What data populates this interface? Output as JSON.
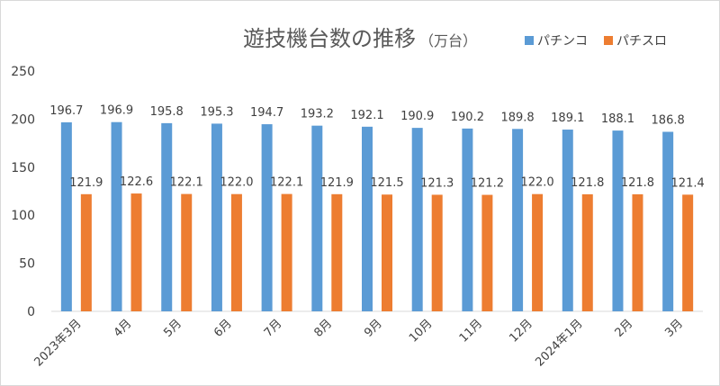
{
  "chart_data": {
    "type": "bar",
    "title": "遊技機台数の推移",
    "title_unit": "（万台）",
    "categories": [
      "2023年3月",
      "4月",
      "5月",
      "6月",
      "7月",
      "8月",
      "9月",
      "10月",
      "11月",
      "12月",
      "2024年1月",
      "2月",
      "3月"
    ],
    "series": [
      {
        "name": "パチンコ",
        "color": "#5b9bd5",
        "values": [
          196.7,
          196.9,
          195.8,
          195.3,
          194.7,
          193.2,
          192.1,
          190.9,
          190.2,
          189.8,
          189.1,
          188.1,
          186.8
        ]
      },
      {
        "name": "パチスロ",
        "color": "#ed7d31",
        "values": [
          121.9,
          122.6,
          122.1,
          122.0,
          122.1,
          121.9,
          121.5,
          121.3,
          121.2,
          122.0,
          121.8,
          121.8,
          121.4
        ]
      }
    ],
    "ylim": [
      0,
      250
    ],
    "yticks": [
      0,
      50,
      100,
      150,
      200,
      250
    ],
    "xlabel": "",
    "ylabel": "",
    "grid": false,
    "legend_position": "top-right"
  }
}
